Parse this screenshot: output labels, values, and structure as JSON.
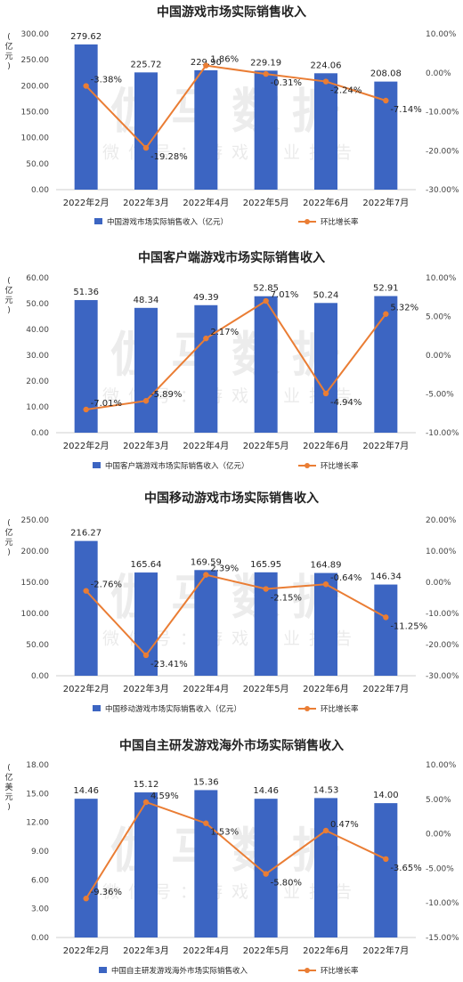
{
  "watermark": {
    "main": "伽马数据",
    "sub": "微信号：游戏产业报告"
  },
  "colors": {
    "bar": "#3c65c2",
    "line": "#ea7d34"
  },
  "chart_data": [
    {
      "type": "bar",
      "title": "中国游戏市场实际销售收入",
      "unit": "(亿元)",
      "categories": [
        "2022年2月",
        "2022年3月",
        "2022年4月",
        "2022年5月",
        "2022年6月",
        "2022年7月"
      ],
      "series": [
        {
          "name": "中国游戏市场实际销售收入（亿元）",
          "values": [
            279.62,
            225.72,
            229.9,
            229.19,
            224.06,
            208.08
          ],
          "axis": "left"
        },
        {
          "name": "环比增长率",
          "values": [
            -3.38,
            -19.28,
            1.86,
            -0.31,
            -2.24,
            -7.14
          ],
          "axis": "right",
          "type": "line"
        }
      ],
      "value_labels": [
        "279.62",
        "225.72",
        "229.90",
        "229.19",
        "224.06",
        "208.08"
      ],
      "pct_labels": [
        "-3.38%",
        "-19.28%",
        "1.86%",
        "-0.31%",
        "-2.24%",
        "-7.14%"
      ],
      "ylim": [
        0,
        300
      ],
      "yticks": [
        "0.00",
        "50.00",
        "100.00",
        "150.00",
        "200.00",
        "250.00",
        "300.00"
      ],
      "y2lim": [
        -30,
        10
      ],
      "y2ticks": [
        "10.00%",
        "0.00%",
        "-10.00%",
        "-20.00%",
        "-30.00%"
      ],
      "legend": "bottom"
    },
    {
      "type": "bar",
      "title": "中国客户端游戏市场实际销售收入",
      "unit": "(亿元)",
      "categories": [
        "2022年2月",
        "2022年3月",
        "2022年4月",
        "2022年5月",
        "2022年6月",
        "2022年7月"
      ],
      "series": [
        {
          "name": "中国客户端游戏市场实际销售收入（亿元）",
          "values": [
            51.36,
            48.34,
            49.39,
            52.85,
            50.24,
            52.91
          ],
          "axis": "left"
        },
        {
          "name": "环比增长率",
          "values": [
            -7.01,
            -5.89,
            2.17,
            7.01,
            -4.94,
            5.32
          ],
          "axis": "right",
          "type": "line"
        }
      ],
      "value_labels": [
        "51.36",
        "48.34",
        "49.39",
        "52.85",
        "50.24",
        "52.91"
      ],
      "pct_labels": [
        "-7.01%",
        "-5.89%",
        "2.17%",
        "7.01%",
        "-4.94%",
        "5.32%"
      ],
      "ylim": [
        0,
        60
      ],
      "yticks": [
        "0.00",
        "10.00",
        "20.00",
        "30.00",
        "40.00",
        "50.00",
        "60.00"
      ],
      "y2lim": [
        -10,
        10
      ],
      "y2ticks": [
        "10.00%",
        "5.00%",
        "0.00%",
        "-5.00%",
        "-10.00%"
      ],
      "legend": "bottom"
    },
    {
      "type": "bar",
      "title": "中国移动游戏市场实际销售收入",
      "unit": "(亿元)",
      "categories": [
        "2022年2月",
        "2022年3月",
        "2022年4月",
        "2022年5月",
        "2022年6月",
        "2022年7月"
      ],
      "series": [
        {
          "name": "中国移动游戏市场实际销售收入（亿元）",
          "values": [
            216.27,
            165.64,
            169.59,
            165.95,
            164.89,
            146.34
          ],
          "axis": "left"
        },
        {
          "name": "环比增长率",
          "values": [
            -2.76,
            -23.41,
            2.39,
            -2.15,
            -0.64,
            -11.25
          ],
          "axis": "right",
          "type": "line"
        }
      ],
      "value_labels": [
        "216.27",
        "165.64",
        "169.59",
        "165.95",
        "164.89",
        "146.34"
      ],
      "pct_labels": [
        "-2.76%",
        "-23.41%",
        "2.39%",
        "-2.15%",
        "-0.64%",
        "-11.25%"
      ],
      "ylim": [
        0,
        250
      ],
      "yticks": [
        "0.00",
        "50.00",
        "100.00",
        "150.00",
        "200.00",
        "250.00"
      ],
      "y2lim": [
        -30,
        20
      ],
      "y2ticks": [
        "20.00%",
        "10.00%",
        "0.00%",
        "-10.00%",
        "-20.00%",
        "-30.00%"
      ],
      "legend": "bottom"
    },
    {
      "type": "bar",
      "title": "中国自主研发游戏海外市场实际销售收入",
      "unit": "(亿美元)",
      "categories": [
        "2022年2月",
        "2022年3月",
        "2022年4月",
        "2022年5月",
        "2022年6月",
        "2022年7月"
      ],
      "series": [
        {
          "name": "中国自主研发游戏海外市场实际销售收入",
          "values": [
            14.46,
            15.12,
            15.36,
            14.46,
            14.53,
            14.0
          ],
          "axis": "left"
        },
        {
          "name": "环比增长率",
          "values": [
            -9.36,
            4.59,
            1.53,
            -5.8,
            0.47,
            -3.65
          ],
          "axis": "right",
          "type": "line"
        }
      ],
      "value_labels": [
        "14.46",
        "15.12",
        "15.36",
        "14.46",
        "14.53",
        "14.00"
      ],
      "pct_labels": [
        "-9.36%",
        "4.59%",
        "1.53%",
        "-5.80%",
        "0.47%",
        "-3.65%"
      ],
      "ylim": [
        0,
        18
      ],
      "yticks": [
        "0.00",
        "3.00",
        "6.00",
        "9.00",
        "12.00",
        "15.00",
        "18.00"
      ],
      "y2lim": [
        -15,
        10
      ],
      "y2ticks": [
        "10.00%",
        "5.00%",
        "0.00%",
        "-5.00%",
        "-10.00%",
        "-15.00%"
      ],
      "legend": "bottom"
    }
  ]
}
